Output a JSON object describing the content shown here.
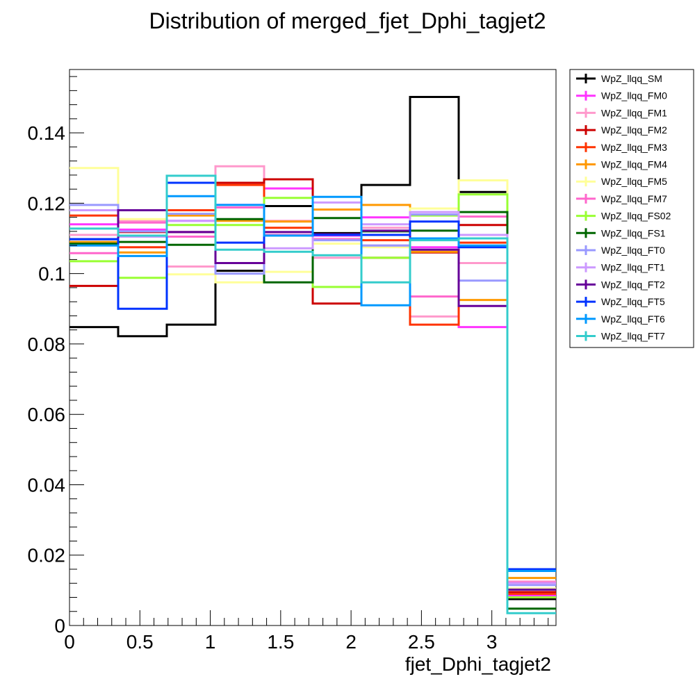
{
  "chart_data": {
    "type": "line",
    "style": "step-histogram",
    "title": "Distribution of merged_fjet_Dphi_tagjet2",
    "xlabel": "fjet_Dphi_tagjet2",
    "ylabel": "",
    "xlim": [
      0,
      3.4558
    ],
    "ylim": [
      0,
      0.158
    ],
    "xticks": [
      0,
      0.5,
      1,
      1.5,
      2,
      2.5,
      3
    ],
    "xtick_labels": [
      "0",
      "0.5",
      "1",
      "1.5",
      "2",
      "2.5",
      "3"
    ],
    "yticks": [
      0,
      0.02,
      0.04,
      0.06,
      0.08,
      0.1,
      0.12,
      0.14
    ],
    "ytick_labels": [
      "0",
      "0.02",
      "0.04",
      "0.06",
      "0.08",
      "0.1",
      "0.12",
      "0.14"
    ],
    "bin_edges": [
      0,
      0.34558,
      0.69115,
      1.03673,
      1.3823,
      1.72788,
      2.07345,
      2.41903,
      2.7646,
      3.11018,
      3.45575
    ],
    "legend_position": "right",
    "grid": false,
    "series": [
      {
        "name": "WpZ_llqq_SM",
        "color": "#000000",
        "values": [
          0.0848,
          0.0822,
          0.0855,
          0.1008,
          0.1192,
          0.1115,
          0.1252,
          0.1502,
          0.1232,
          0.0075
        ]
      },
      {
        "name": "WpZ_llqq_FM0",
        "color": "#ff33ff",
        "values": [
          0.114,
          0.1125,
          0.115,
          0.1195,
          0.1242,
          0.1108,
          0.116,
          0.1075,
          0.0848,
          0.0085
        ]
      },
      {
        "name": "WpZ_llqq_FM1",
        "color": "#ff99cc",
        "values": [
          0.111,
          0.115,
          0.102,
          0.1305,
          0.115,
          0.1045,
          0.113,
          0.0878,
          0.103,
          0.0125
        ]
      },
      {
        "name": "WpZ_llqq_FM2",
        "color": "#cc0000",
        "values": [
          0.0965,
          0.1118,
          0.1118,
          0.1258,
          0.1268,
          0.0915,
          0.1045,
          0.106,
          0.1138,
          0.0095
        ]
      },
      {
        "name": "WpZ_llqq_FM3",
        "color": "#ff3300",
        "values": [
          0.1165,
          0.1075,
          0.118,
          0.1252,
          0.113,
          0.1098,
          0.1095,
          0.0855,
          0.1088,
          0.009
        ]
      },
      {
        "name": "WpZ_llqq_FM4",
        "color": "#ff9900",
        "values": [
          0.109,
          0.106,
          0.1165,
          0.115,
          0.1148,
          0.1182,
          0.1195,
          0.1062,
          0.0925,
          0.0135
        ]
      },
      {
        "name": "WpZ_llqq_FM5",
        "color": "#ffff99",
        "values": [
          0.13,
          0.1155,
          0.0998,
          0.0975,
          0.1005,
          0.1085,
          0.1075,
          0.1185,
          0.1265,
          0.0105
        ]
      },
      {
        "name": "WpZ_llqq_FM7",
        "color": "#ff66cc",
        "values": [
          0.1058,
          0.1145,
          0.1105,
          0.1188,
          0.111,
          0.1098,
          0.108,
          0.0935,
          0.1162,
          0.0122
        ]
      },
      {
        "name": "WpZ_llqq_FS02",
        "color": "#99ff33",
        "values": [
          0.1035,
          0.0988,
          0.1138,
          0.1138,
          0.1215,
          0.0962,
          0.1045,
          0.1165,
          0.1225,
          0.008
        ]
      },
      {
        "name": "WpZ_llqq_FS1",
        "color": "#006600",
        "values": [
          0.1085,
          0.109,
          0.1082,
          0.1155,
          0.0975,
          0.1158,
          0.112,
          0.1122,
          0.1175,
          0.0048
        ]
      },
      {
        "name": "WpZ_llqq_FT0",
        "color": "#9999ff",
        "values": [
          0.1195,
          0.112,
          0.117,
          0.1,
          0.1108,
          0.1095,
          0.108,
          0.1168,
          0.098,
          0.0115
        ]
      },
      {
        "name": "WpZ_llqq_FT1",
        "color": "#cc99ff",
        "values": [
          0.118,
          0.1105,
          0.115,
          0.1195,
          0.1072,
          0.1202,
          0.114,
          0.1175,
          0.111,
          0.012
        ]
      },
      {
        "name": "WpZ_llqq_FT2",
        "color": "#660099",
        "values": [
          0.1098,
          0.118,
          0.1118,
          0.103,
          0.1118,
          0.1112,
          0.1122,
          0.1068,
          0.0908,
          0.0102
        ]
      },
      {
        "name": "WpZ_llqq_FT5",
        "color": "#0033ff",
        "values": [
          0.1098,
          0.09,
          0.1258,
          0.1088,
          0.1108,
          0.111,
          0.111,
          0.1148,
          0.1075,
          0.016
        ]
      },
      {
        "name": "WpZ_llqq_FT6",
        "color": "#0099ff",
        "values": [
          0.108,
          0.105,
          0.122,
          0.1195,
          0.1108,
          0.1218,
          0.091,
          0.11,
          0.108,
          0.0155
        ]
      },
      {
        "name": "WpZ_llqq_FT7",
        "color": "#33cccc",
        "values": [
          0.1128,
          0.1108,
          0.1278,
          0.1068,
          0.1062,
          0.1052,
          0.0975,
          0.1095,
          0.11,
          0.0035
        ]
      }
    ]
  }
}
